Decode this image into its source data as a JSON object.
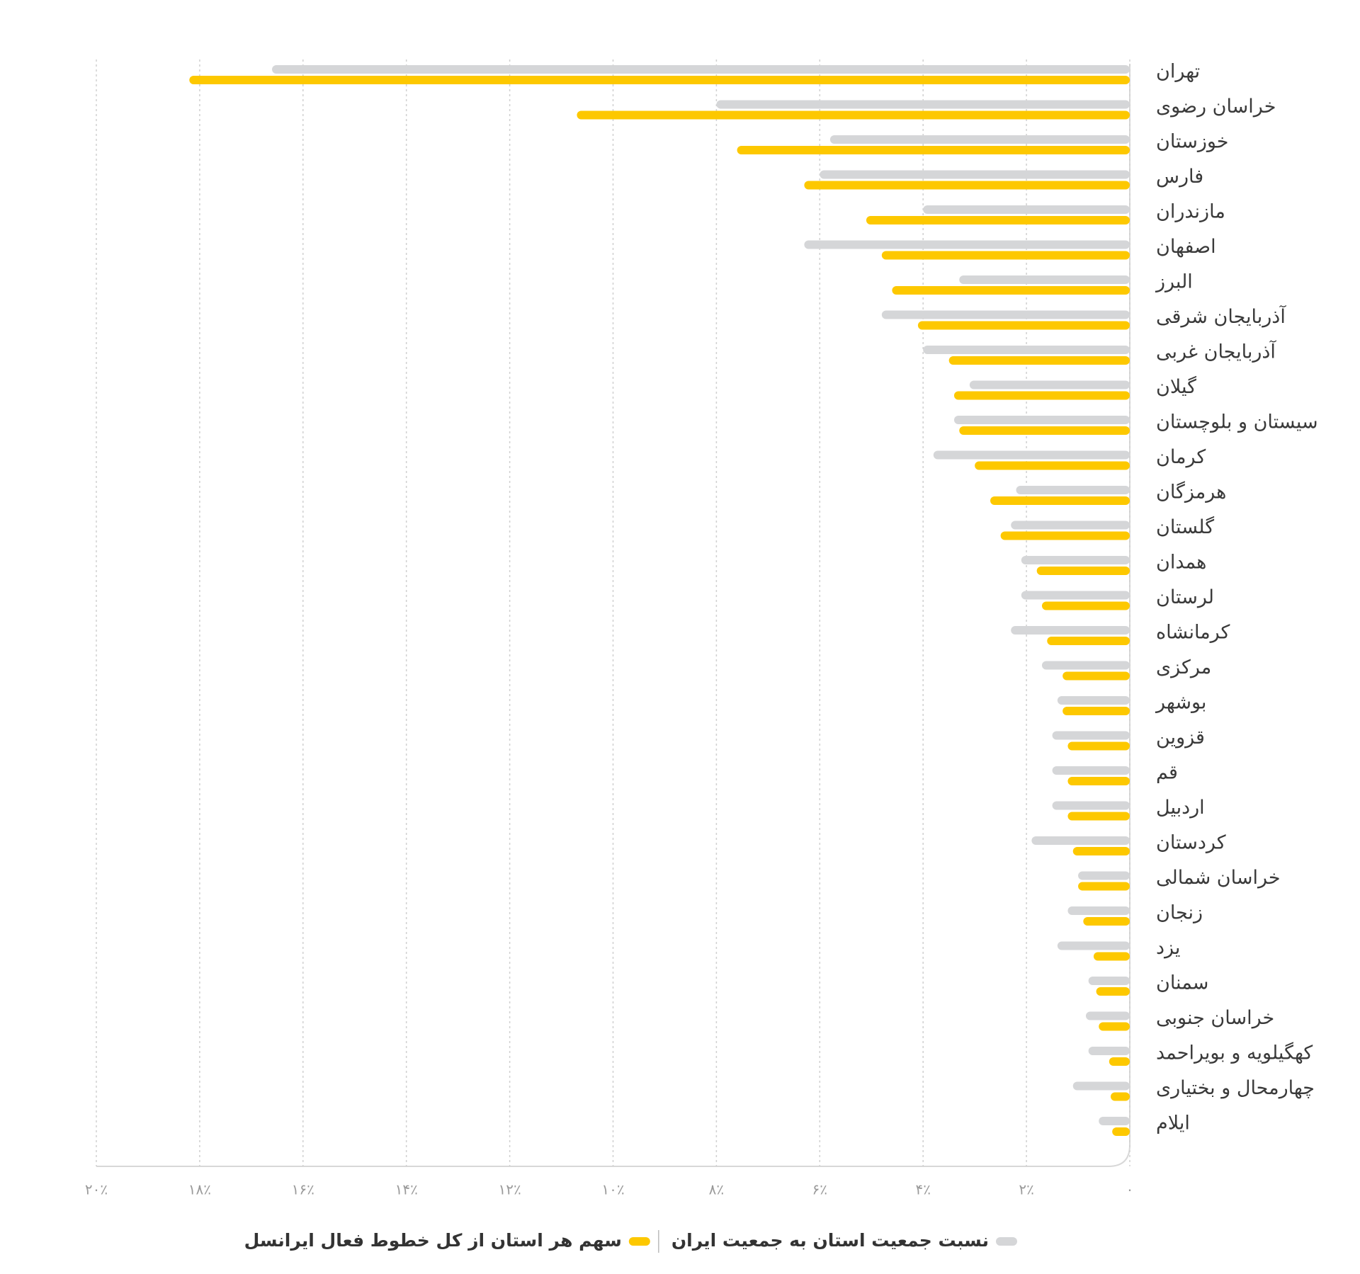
{
  "chart_data": {
    "type": "hbar",
    "x_reversed": true,
    "grid": true,
    "xlim": [
      0,
      20
    ],
    "xticks": [
      {
        "value": 0,
        "label": "۰"
      },
      {
        "value": 2,
        "label": "۲٪"
      },
      {
        "value": 4,
        "label": "۴٪"
      },
      {
        "value": 6,
        "label": "۶٪"
      },
      {
        "value": 8,
        "label": "۸٪"
      },
      {
        "value": 10,
        "label": "۱۰٪"
      },
      {
        "value": 12,
        "label": "۱۲٪"
      },
      {
        "value": 14,
        "label": "۱۴٪"
      },
      {
        "value": 16,
        "label": "۱۶٪"
      },
      {
        "value": 18,
        "label": "۱۸٪"
      },
      {
        "value": 20,
        "label": "۲۰٪"
      }
    ],
    "categories": [
      "تهران",
      "خراسان رضوی",
      "خوزستان",
      "فارس",
      "مازندران",
      "اصفهان",
      "البرز",
      "آذربایجان شرقی",
      "آذربایجان غربی",
      "گیلان",
      "سیستان و بلوچستان",
      "کرمان",
      "هرمزگان",
      "گلستان",
      "همدان",
      "لرستان",
      "کرمانشاه",
      "مرکزی",
      "بوشهر",
      "قزوین",
      "قم",
      "اردبیل",
      "کردستان",
      "خراسان شمالی",
      "زنجان",
      "یزد",
      "سمنان",
      "خراسان جنوبی",
      "کهگیلویه و بویراحمد",
      "چهارمحال و بختیاری",
      "ایلام"
    ],
    "series": [
      {
        "name": "نسبت جمعیت استان به جمعیت ایران",
        "color": "#d5d6d8",
        "values": [
          16.6,
          8.0,
          5.8,
          6.0,
          4.0,
          6.3,
          3.3,
          4.8,
          4.0,
          3.1,
          3.4,
          3.8,
          2.2,
          2.3,
          2.1,
          2.1,
          2.3,
          1.7,
          1.4,
          1.5,
          1.5,
          1.5,
          1.9,
          1.0,
          1.2,
          1.4,
          0.8,
          0.85,
          0.8,
          1.1,
          0.6
        ]
      },
      {
        "name": "سهم هر استان از کل خطوط فعال ایرانسل",
        "color": "#fdc800",
        "values": [
          18.2,
          10.7,
          7.6,
          6.3,
          5.1,
          4.8,
          4.6,
          4.1,
          3.5,
          3.4,
          3.3,
          3.0,
          2.7,
          2.5,
          1.8,
          1.7,
          1.6,
          1.3,
          1.3,
          1.2,
          1.2,
          1.2,
          1.1,
          1.0,
          0.9,
          0.7,
          0.65,
          0.6,
          0.4,
          0.37,
          0.34
        ]
      }
    ]
  }
}
